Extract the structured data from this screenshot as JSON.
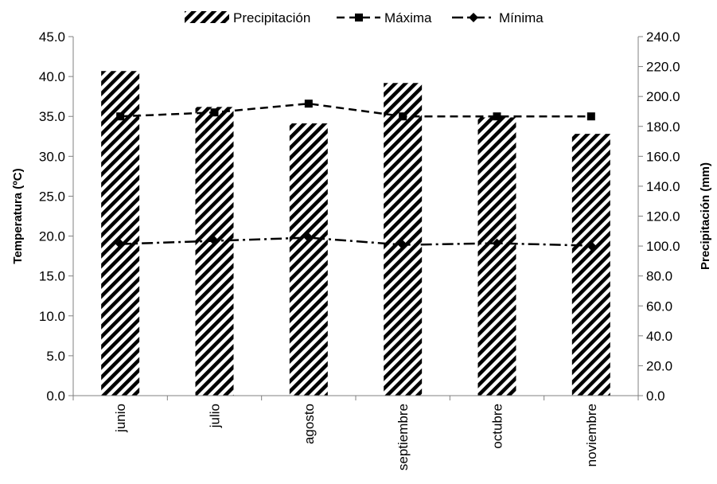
{
  "chart_data": {
    "type": "bar+line",
    "categories": [
      "junio",
      "julio",
      "agosto",
      "septiembre",
      "octubre",
      "noviembre"
    ],
    "y_left": {
      "label": "Temperatura (ºC)",
      "lim": [
        0,
        45
      ],
      "ticks": [
        "0.0",
        "5.0",
        "10.0",
        "15.0",
        "20.0",
        "25.0",
        "30.0",
        "35.0",
        "40.0",
        "45.0"
      ]
    },
    "y_right": {
      "label": "Precipitación (mm)",
      "lim": [
        0,
        240
      ],
      "ticks": [
        "0.0",
        "20.0",
        "40.0",
        "60.0",
        "80.0",
        "100.0",
        "120.0",
        "140.0",
        "160.0",
        "180.0",
        "200.0",
        "220.0",
        "240.0"
      ]
    },
    "series": [
      {
        "name": "Precipitación",
        "type": "bar",
        "axis": "right",
        "values": [
          217,
          193,
          182,
          209,
          186,
          175
        ]
      },
      {
        "name": "Máxima",
        "type": "line",
        "axis": "left",
        "style": "dashed",
        "marker": "square",
        "values": [
          35.0,
          35.5,
          36.6,
          35.0,
          35.0,
          35.0
        ]
      },
      {
        "name": "Mínima",
        "type": "line",
        "axis": "left",
        "style": "dash-dot",
        "marker": "diamond",
        "values": [
          19.0,
          19.4,
          19.8,
          18.9,
          19.1,
          18.8
        ]
      }
    ],
    "legend": [
      "Precipitación",
      "Máxima",
      "Mínima"
    ],
    "legend_position": "top",
    "grid": false,
    "colors": {
      "bars": "#000000",
      "lines": "#000000",
      "background": "#ffffff"
    }
  }
}
